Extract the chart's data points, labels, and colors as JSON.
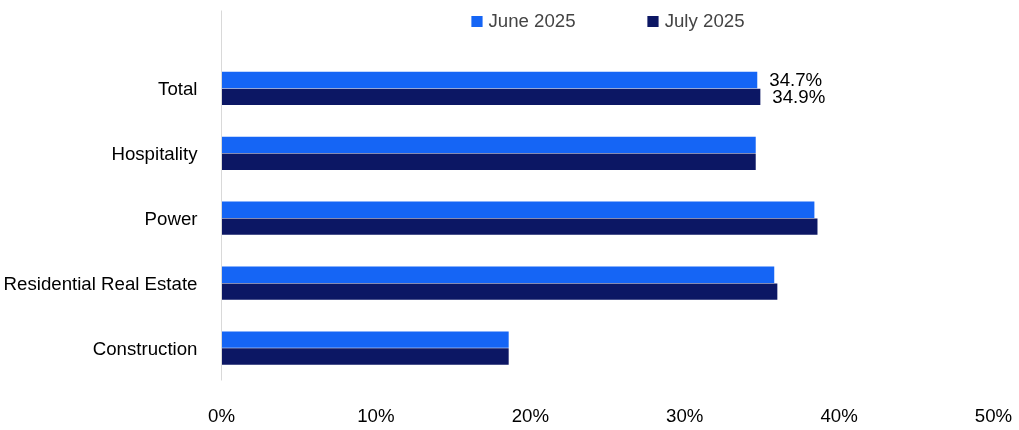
{
  "chart_data": {
    "type": "bar",
    "orientation": "horizontal",
    "categories": [
      "Total",
      "Hospitality",
      "Power",
      "Residential Real Estate",
      "Construction"
    ],
    "series": [
      {
        "name": "June 2025",
        "color": "#1565f5",
        "values": [
          34.7,
          34.6,
          38.4,
          35.8,
          18.6
        ],
        "value_labels": [
          "34.7%",
          null,
          null,
          null,
          null
        ]
      },
      {
        "name": "July 2025",
        "color": "#0c1764",
        "values": [
          34.9,
          34.6,
          38.6,
          36.0,
          18.6
        ],
        "value_labels": [
          "34.9%",
          null,
          null,
          null,
          null
        ]
      }
    ],
    "xlim": [
      0,
      50
    ],
    "xticks": [
      {
        "value": 0,
        "label": "0%"
      },
      {
        "value": 10,
        "label": "10%"
      },
      {
        "value": 20,
        "label": "20%"
      },
      {
        "value": 30,
        "label": "30%"
      },
      {
        "value": 40,
        "label": "40%"
      },
      {
        "value": 50,
        "label": "50%"
      }
    ],
    "grid": false,
    "legend": "top"
  }
}
